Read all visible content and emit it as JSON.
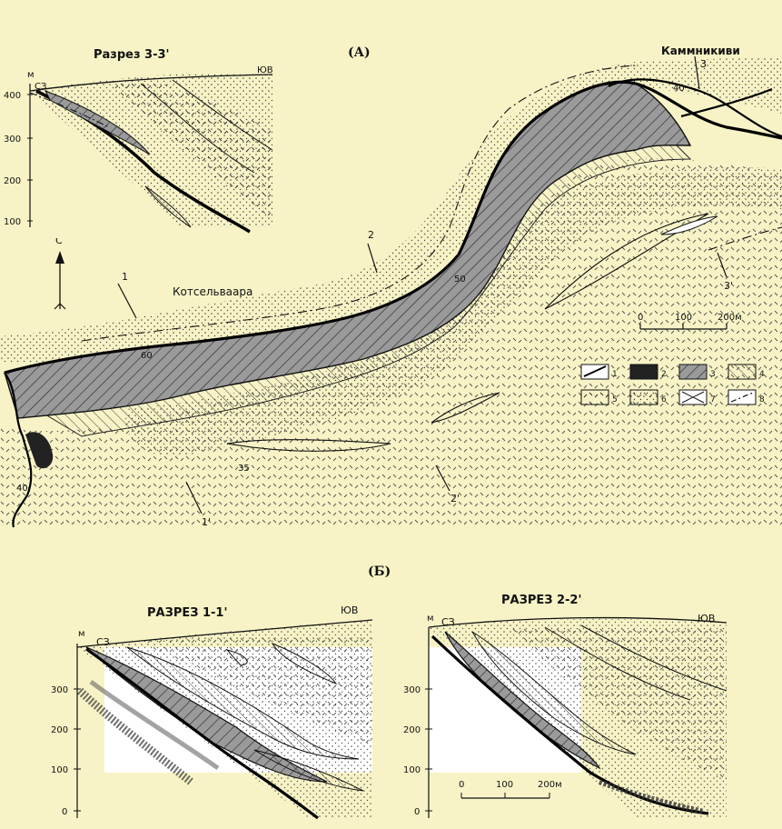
{
  "panel_a": {
    "label": "(А)",
    "place_kaminkivi": "Каммникиви",
    "place_kotselvaara": "Котсельваара",
    "north_arrow": "С",
    "section_marks": [
      "1",
      "1'",
      "2",
      "2'",
      "3",
      "3'"
    ],
    "dips": [
      "40",
      "50",
      "60",
      "35",
      "40"
    ],
    "scale_ticks": [
      "0",
      "100",
      "200м"
    ],
    "legend": [
      "1",
      "2",
      "3",
      "4",
      "5",
      "6",
      "7",
      "8"
    ],
    "inset": {
      "title": "Разрез 3-3'",
      "unit": "м",
      "nw": "СЗ",
      "se": "ЮВ",
      "y_ticks": [
        "400",
        "300",
        "200",
        "100"
      ]
    }
  },
  "panel_b": {
    "label": "(Б)",
    "section_1": {
      "title": "РАЗРЕЗ 1-1'",
      "unit": "м",
      "nw": "СЗ",
      "se": "ЮВ",
      "y_ticks": [
        "300",
        "200",
        "100",
        "0"
      ]
    },
    "section_2": {
      "title": "РАЗРЕЗ 2-2'",
      "unit": "м",
      "nw": "СЗ",
      "se": "ЮВ",
      "y_ticks": [
        "300",
        "200",
        "100",
        "0"
      ],
      "scale_ticks": [
        "0",
        "100",
        "200м"
      ]
    }
  },
  "colors": {
    "background": "#f7f3c6",
    "ink": "#111111",
    "ore_fill": "#9a9a9a",
    "section_bg": "#ffffff"
  }
}
